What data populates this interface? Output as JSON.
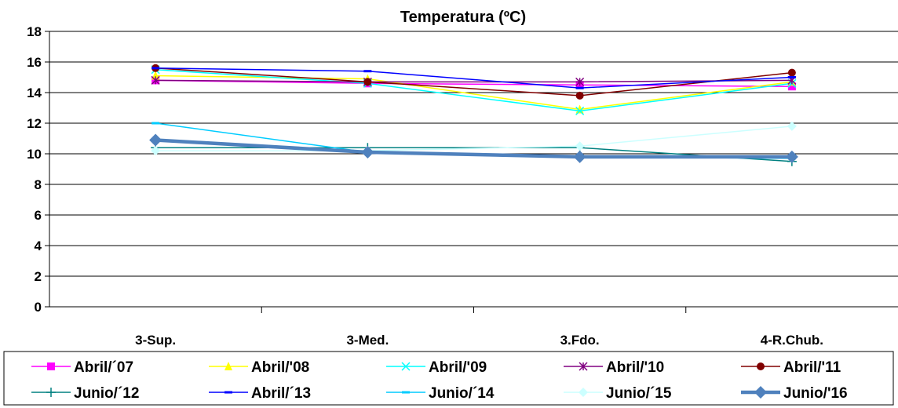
{
  "chart_data": {
    "type": "line",
    "title": "Temperatura (ºC)",
    "xlabel": "",
    "ylabel": "",
    "categories": [
      "3-Sup.",
      "3-Med.",
      "3.Fdo.",
      "4-R.Chub."
    ],
    "ylim": [
      0,
      18
    ],
    "yticks": [
      0,
      2,
      4,
      6,
      8,
      10,
      12,
      14,
      16,
      18
    ],
    "grid": true,
    "legend_position": "bottom",
    "series": [
      {
        "name": "Abril/´07",
        "color": "#FF00FF",
        "marker": "square",
        "values": [
          14.8,
          14.6,
          14.5,
          14.4
        ]
      },
      {
        "name": "Abril/'08",
        "color": "#FFFF00",
        "marker": "triangle",
        "values": [
          15.1,
          14.9,
          12.9,
          14.7
        ]
      },
      {
        "name": "Abril/'09",
        "color": "#00FFFF",
        "marker": "x",
        "values": [
          15.5,
          14.6,
          12.8,
          14.6
        ]
      },
      {
        "name": "Abril/'10",
        "color": "#800080",
        "marker": "star",
        "values": [
          14.8,
          14.7,
          14.7,
          14.8
        ]
      },
      {
        "name": "Abril/'11",
        "color": "#800000",
        "marker": "circle",
        "values": [
          15.6,
          14.7,
          13.8,
          15.3
        ]
      },
      {
        "name": "Junio/´12",
        "color": "#008080",
        "marker": "plus",
        "values": [
          10.4,
          10.4,
          10.4,
          9.5
        ]
      },
      {
        "name": "Abril/´13",
        "color": "#0000FF",
        "marker": "dash",
        "values": [
          15.6,
          15.4,
          14.3,
          15.0
        ]
      },
      {
        "name": "Junio/´14",
        "color": "#00CCFF",
        "marker": "dash",
        "values": [
          12.0,
          10.1,
          9.8,
          9.7
        ]
      },
      {
        "name": "Junio/´15",
        "color": "#CCFFFF",
        "marker": "diamond",
        "values": [
          10.2,
          10.2,
          10.5,
          11.8
        ]
      },
      {
        "name": "Junio/'16",
        "color": "#4F81BD",
        "marker": "diamond",
        "values": [
          10.9,
          10.1,
          9.8,
          9.8
        ],
        "thick": true
      }
    ]
  }
}
